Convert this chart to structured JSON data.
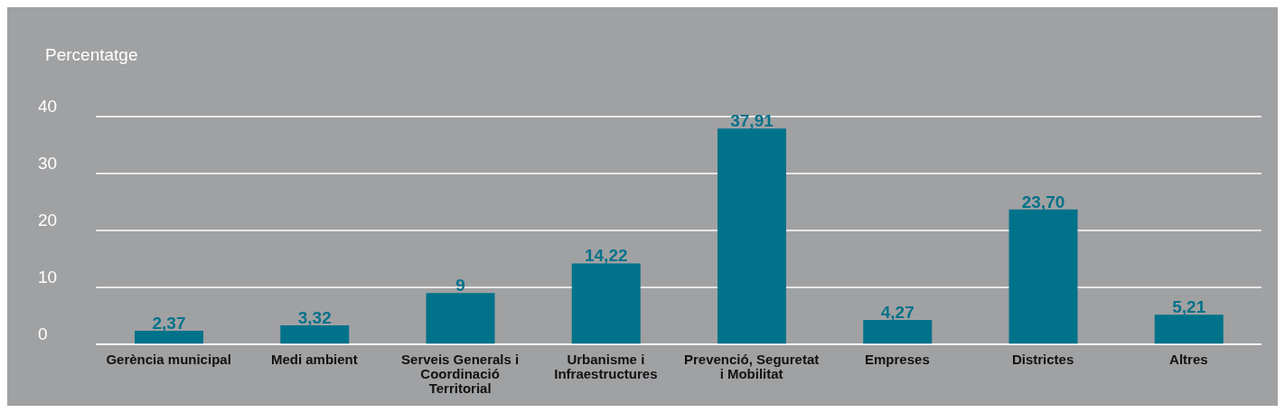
{
  "chart_data": {
    "type": "bar",
    "ylabel": "Percentatge",
    "categories": [
      "Gerència municipal",
      "Medi ambient",
      "Serveis Generals i Coordinació Territorial",
      "Urbanisme i Infraestructures",
      "Prevenció, Seguretat i Mobilitat",
      "Empreses",
      "Districtes",
      "Altres"
    ],
    "values": [
      2.37,
      3.32,
      9,
      14.22,
      37.91,
      4.27,
      23.7,
      5.21
    ],
    "value_labels": [
      "2,37",
      "3,32",
      "9",
      "14,22",
      "37,91",
      "4,27",
      "23,70",
      "5,21"
    ],
    "color": "#00728a",
    "ylim": [
      0,
      40
    ],
    "yticks": [
      0,
      10,
      20,
      30,
      40
    ],
    "grid": "y",
    "legend": false
  }
}
